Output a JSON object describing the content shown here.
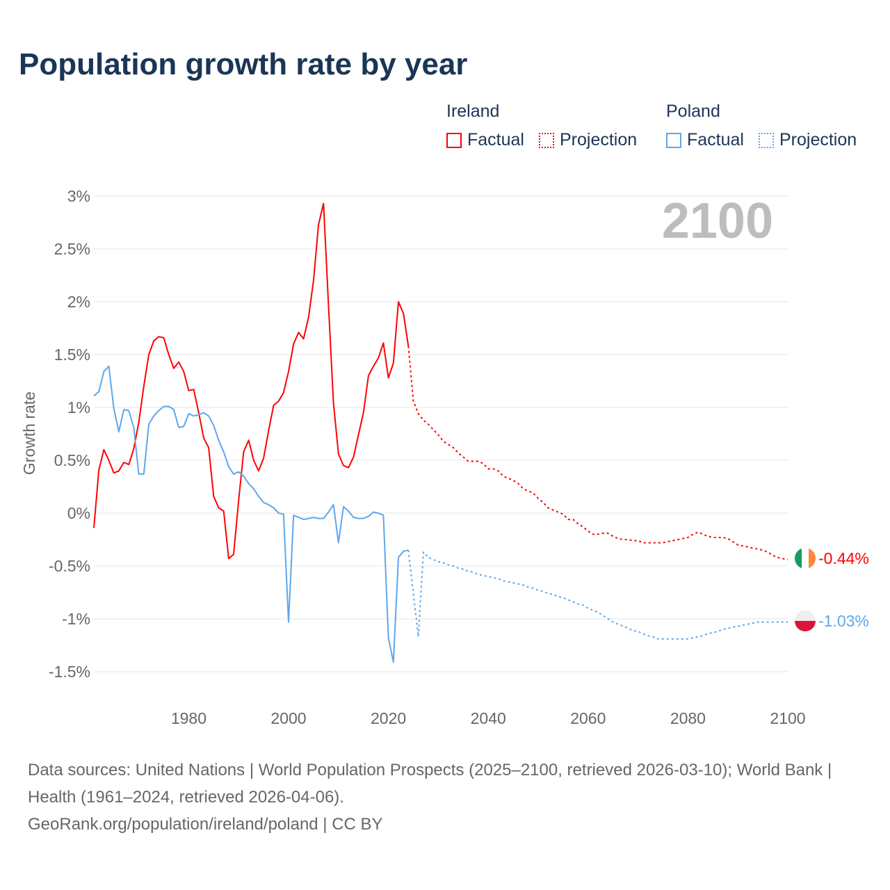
{
  "title": "Population growth rate by year",
  "legend": {
    "groups": [
      {
        "name": "Ireland",
        "color": "#ff0000",
        "factual": "Factual",
        "projection": "Projection"
      },
      {
        "name": "Poland",
        "color": "#5ea6ec",
        "factual": "Factual",
        "projection": "Projection"
      }
    ]
  },
  "footer": {
    "sources": "Data sources: United Nations | World Population Prospects (2025–2100, retrieved 2026-03-10); World Bank | Health (1961–2024, retrieved 2026-04-06).",
    "credit": "GeoRank.org/population/ireland/poland | CC BY"
  },
  "chart_data": {
    "type": "line",
    "title": "Population growth rate by year",
    "ylabel": "Growth rate",
    "xlabel": "",
    "current_year_label": "2100",
    "xlim": [
      1961,
      2100
    ],
    "ylim": [
      -1.5,
      3
    ],
    "xticks": [
      1980,
      2000,
      2020,
      2040,
      2060,
      2080,
      2100
    ],
    "yticks": [
      {
        "v": 3,
        "label": "3%"
      },
      {
        "v": 2.5,
        "label": "2.5%"
      },
      {
        "v": 2,
        "label": "2%"
      },
      {
        "v": 1.5,
        "label": "1.5%"
      },
      {
        "v": 1,
        "label": "1%"
      },
      {
        "v": 0.5,
        "label": "0.5%"
      },
      {
        "v": 0,
        "label": "0%"
      },
      {
        "v": -0.5,
        "label": "-0.5%"
      },
      {
        "v": -1,
        "label": "-1%"
      },
      {
        "v": -1.5,
        "label": "-1.5%"
      }
    ],
    "grid": true,
    "legend_position": "top-right",
    "series": [
      {
        "name": "Ireland",
        "color": "#ff0000",
        "end_label": "-0.44%",
        "factual": {
          "x_start": 1961,
          "values": [
            -0.14,
            0.41,
            0.6,
            0.5,
            0.38,
            0.4,
            0.48,
            0.46,
            0.61,
            0.86,
            1.2,
            1.5,
            1.63,
            1.67,
            1.66,
            1.5,
            1.37,
            1.43,
            1.34,
            1.16,
            1.17,
            0.95,
            0.71,
            0.62,
            0.16,
            0.05,
            0.02,
            -0.43,
            -0.39,
            0.12,
            0.58,
            0.69,
            0.5,
            0.4,
            0.52,
            0.78,
            1.02,
            1.06,
            1.14,
            1.34,
            1.6,
            1.71,
            1.65,
            1.85,
            2.2,
            2.73,
            2.93,
            1.96,
            1.04,
            0.56,
            0.45,
            0.43,
            0.53,
            0.74,
            0.95,
            1.3,
            1.39,
            1.47,
            1.61,
            1.28,
            1.42,
            2.0,
            1.89,
            1.58
          ]
        },
        "projection": {
          "x_start": 2024,
          "values": [
            1.58,
            1.06,
            0.94,
            0.88,
            0.84,
            0.79,
            0.74,
            0.68,
            0.65,
            0.62,
            0.57,
            0.53,
            0.49,
            0.49,
            0.49,
            0.47,
            0.42,
            0.42,
            0.4,
            0.35,
            0.33,
            0.31,
            0.28,
            0.23,
            0.21,
            0.19,
            0.14,
            0.1,
            0.05,
            0.03,
            0.01,
            -0.01,
            -0.06,
            -0.06,
            -0.1,
            -0.13,
            -0.17,
            -0.2,
            -0.2,
            -0.19,
            -0.19,
            -0.22,
            -0.24,
            -0.25,
            -0.25,
            -0.26,
            -0.26,
            -0.28,
            -0.28,
            -0.28,
            -0.28,
            -0.28,
            -0.27,
            -0.26,
            -0.25,
            -0.24,
            -0.23,
            -0.2,
            -0.18,
            -0.2,
            -0.22,
            -0.23,
            -0.23,
            -0.23,
            -0.24,
            -0.27,
            -0.3,
            -0.31,
            -0.32,
            -0.33,
            -0.34,
            -0.35,
            -0.37,
            -0.4,
            -0.42,
            -0.43,
            -0.44
          ]
        }
      },
      {
        "name": "Poland",
        "color": "#5ea6ec",
        "end_label": "-1.03%",
        "factual": {
          "x_start": 1961,
          "values": [
            1.11,
            1.15,
            1.34,
            1.39,
            0.99,
            0.77,
            0.98,
            0.97,
            0.81,
            0.37,
            0.37,
            0.84,
            0.92,
            0.97,
            1.01,
            1.01,
            0.98,
            0.81,
            0.82,
            0.94,
            0.92,
            0.93,
            0.95,
            0.92,
            0.83,
            0.69,
            0.58,
            0.44,
            0.37,
            0.39,
            0.35,
            0.28,
            0.23,
            0.16,
            0.1,
            0.08,
            0.05,
            0.0,
            -0.01,
            -1.03,
            -0.02,
            -0.04,
            -0.06,
            -0.05,
            -0.04,
            -0.05,
            -0.05,
            0.01,
            0.08,
            -0.28,
            0.06,
            0.02,
            -0.04,
            -0.05,
            -0.05,
            -0.03,
            0.01,
            0.0,
            -0.02,
            -1.18,
            -1.41,
            -0.42,
            -0.36,
            -0.35
          ]
        },
        "projection": {
          "x_start": 2024,
          "values": [
            -0.35,
            -0.76,
            -1.17,
            -0.37,
            -0.42,
            -0.44,
            -0.46,
            -0.47,
            -0.49,
            -0.5,
            -0.52,
            -0.53,
            -0.55,
            -0.56,
            -0.58,
            -0.59,
            -0.6,
            -0.61,
            -0.62,
            -0.64,
            -0.65,
            -0.66,
            -0.67,
            -0.68,
            -0.7,
            -0.71,
            -0.73,
            -0.74,
            -0.76,
            -0.77,
            -0.79,
            -0.8,
            -0.82,
            -0.84,
            -0.86,
            -0.87,
            -0.9,
            -0.92,
            -0.94,
            -0.97,
            -1.0,
            -1.03,
            -1.05,
            -1.07,
            -1.09,
            -1.11,
            -1.12,
            -1.14,
            -1.16,
            -1.17,
            -1.19,
            -1.19,
            -1.19,
            -1.19,
            -1.19,
            -1.19,
            -1.19,
            -1.18,
            -1.17,
            -1.16,
            -1.14,
            -1.13,
            -1.12,
            -1.1,
            -1.09,
            -1.08,
            -1.07,
            -1.06,
            -1.05,
            -1.04,
            -1.03,
            -1.03,
            -1.03,
            -1.03,
            -1.03,
            -1.03,
            -1.03
          ]
        }
      }
    ]
  }
}
